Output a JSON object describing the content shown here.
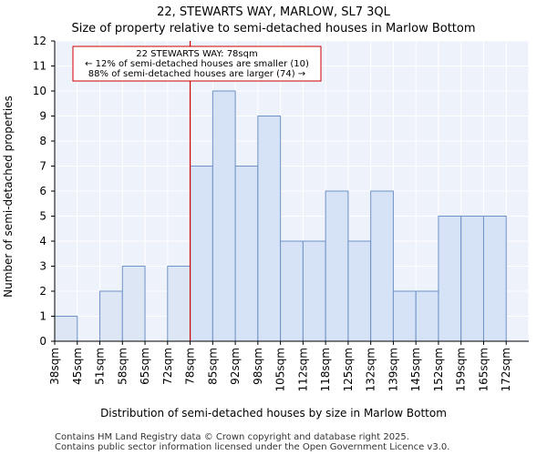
{
  "chart_data": {
    "type": "bar",
    "title": "22, STEWARTS WAY, MARLOW, SL7 3QL",
    "subtitle": "Size of property relative to semi-detached houses in Marlow Bottom",
    "xlabel": "Distribution of semi-detached houses by size in Marlow Bottom",
    "ylabel": "Number of semi-detached properties",
    "categories": [
      "38sqm",
      "45sqm",
      "51sqm",
      "58sqm",
      "65sqm",
      "72sqm",
      "78sqm",
      "85sqm",
      "92sqm",
      "98sqm",
      "105sqm",
      "112sqm",
      "118sqm",
      "125sqm",
      "132sqm",
      "139sqm",
      "145sqm",
      "152sqm",
      "159sqm",
      "165sqm",
      "172sqm"
    ],
    "values": [
      1,
      0,
      2,
      3,
      0,
      3,
      7,
      10,
      7,
      9,
      4,
      4,
      6,
      4,
      6,
      2,
      2,
      5,
      5,
      5,
      0
    ],
    "ylim": [
      0,
      12
    ],
    "yticks": [
      0,
      1,
      2,
      3,
      4,
      5,
      6,
      7,
      8,
      9,
      10,
      11,
      12
    ],
    "grid": true,
    "marker": {
      "category": "78sqm",
      "color": "#cc0000"
    },
    "annotation": {
      "lines": [
        "22 STEWARTS WAY: 78sqm",
        "← 12% of semi-detached houses are smaller (10)",
        "88% of semi-detached houses are larger (74) →"
      ]
    },
    "colors": {
      "bar_before": "#dde6f4",
      "bar_after": "#d6e2f5",
      "bar_edge": "#6f92c8",
      "plot_bg": "#eef2fb",
      "grid": "#ffffff"
    }
  },
  "footer": {
    "line1": "Contains HM Land Registry data © Crown copyright and database right 2025.",
    "line2": "Contains public sector information licensed under the Open Government Licence v3.0."
  }
}
